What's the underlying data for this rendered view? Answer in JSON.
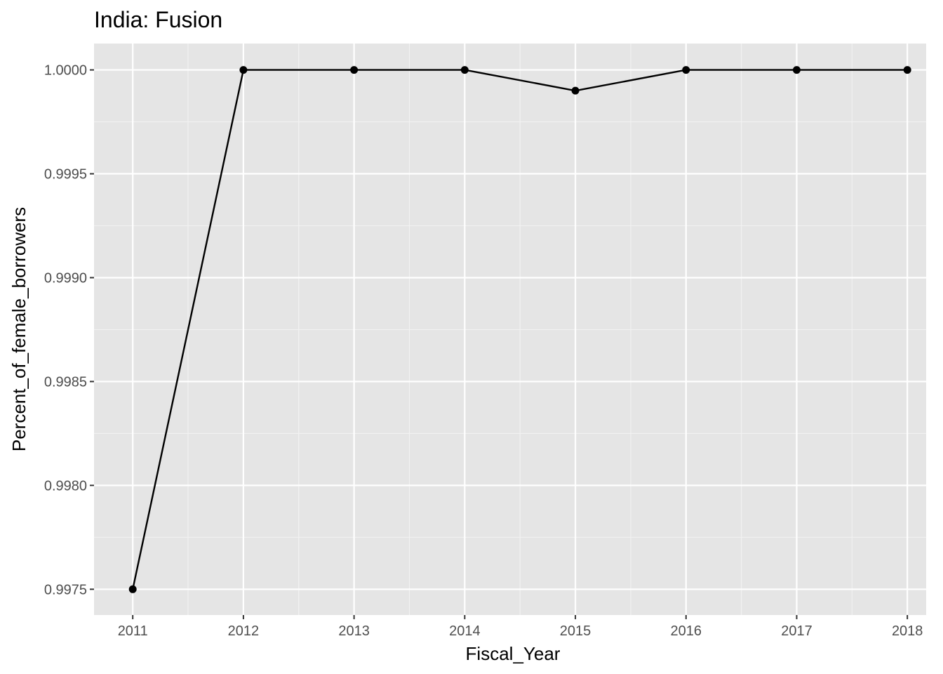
{
  "chart_data": {
    "type": "line",
    "title": "India:  Fusion",
    "xlabel": "Fiscal_Year",
    "ylabel": "Percent_of_female_borrowers",
    "x": [
      2011,
      2012,
      2013,
      2014,
      2015,
      2016,
      2017,
      2018
    ],
    "series": [
      {
        "values": [
          0.9975,
          1.0,
          1.0,
          1.0,
          0.9999,
          1.0,
          1.0,
          1.0
        ],
        "color": "#000000"
      }
    ],
    "xticks": [
      "2011",
      "2012",
      "2013",
      "2014",
      "2015",
      "2016",
      "2017",
      "2018"
    ],
    "yticks": [
      {
        "value": 0.9975,
        "label": "0.9975"
      },
      {
        "value": 0.998,
        "label": "0.9980"
      },
      {
        "value": 0.9985,
        "label": "0.9985"
      },
      {
        "value": 0.999,
        "label": "0.9990"
      },
      {
        "value": 0.9995,
        "label": "0.9995"
      },
      {
        "value": 1.0,
        "label": "1.0000"
      }
    ],
    "xlim": [
      2010.65,
      2018.17
    ],
    "ylim": [
      0.997376,
      1.000127
    ],
    "grid": true,
    "panel_background": "#e5e5e5",
    "grid_color": "#ffffff",
    "legend": "none"
  }
}
